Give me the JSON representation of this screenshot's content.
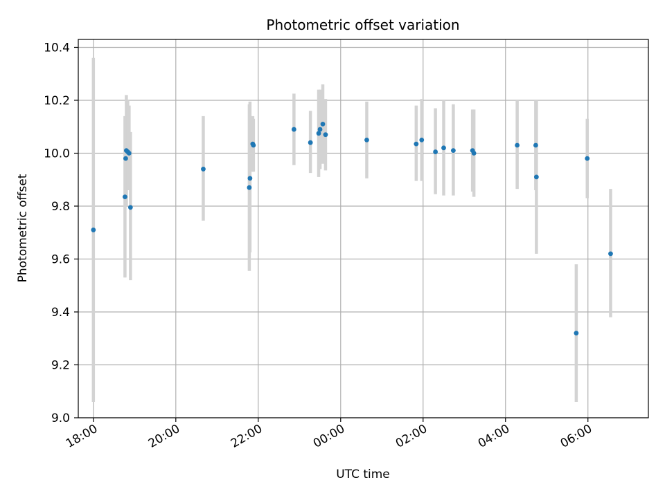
{
  "chart_data": {
    "type": "scatter",
    "title": "Photometric offset variation",
    "xlabel": "UTC time",
    "ylabel": "Photometric offset",
    "x_unit": "hours UTC (values past 24 are the next day)",
    "xlim": [
      "17:38",
      "07:28"
    ],
    "ylim": [
      9.0,
      10.43
    ],
    "x_ticks": [
      "18:00",
      "20:00",
      "22:00",
      "00:00",
      "02:00",
      "04:00",
      "06:00"
    ],
    "y_ticks": [
      "9.0",
      "9.2",
      "9.4",
      "9.6",
      "9.8",
      "10.0",
      "10.2",
      "10.4"
    ],
    "grid": true,
    "colors": {
      "points": "#1f77b4",
      "error_bars": "#d3d3d3",
      "grid": "#b0b0b0"
    },
    "points": [
      {
        "t": "18:00",
        "y": 9.71,
        "lo": 9.06,
        "hi": 10.36
      },
      {
        "t": "18:46",
        "y": 9.835,
        "lo": 9.53,
        "hi": 10.14
      },
      {
        "t": "18:47",
        "y": 9.98,
        "lo": 9.83,
        "hi": 10.13
      },
      {
        "t": "18:48",
        "y": 10.01,
        "lo": 9.8,
        "hi": 10.22
      },
      {
        "t": "18:50",
        "y": 10.005,
        "lo": 9.86,
        "hi": 10.2
      },
      {
        "t": "18:52",
        "y": 10.0,
        "lo": 9.86,
        "hi": 10.18
      },
      {
        "t": "18:54",
        "y": 9.795,
        "lo": 9.52,
        "hi": 10.08
      },
      {
        "t": "20:40",
        "y": 9.94,
        "lo": 9.745,
        "hi": 10.14
      },
      {
        "t": "21:47",
        "y": 9.87,
        "lo": 9.555,
        "hi": 10.185
      },
      {
        "t": "21:48",
        "y": 9.905,
        "lo": 9.625,
        "hi": 10.195
      },
      {
        "t": "21:52",
        "y": 10.035,
        "lo": 9.93,
        "hi": 10.14
      },
      {
        "t": "21:53",
        "y": 10.03,
        "lo": 9.93,
        "hi": 10.13
      },
      {
        "t": "22:52",
        "y": 10.09,
        "lo": 9.955,
        "hi": 10.225
      },
      {
        "t": "23:16",
        "y": 10.04,
        "lo": 9.925,
        "hi": 10.16
      },
      {
        "t": "23:28",
        "y": 10.075,
        "lo": 9.91,
        "hi": 10.24
      },
      {
        "t": "23:30",
        "y": 10.09,
        "lo": 9.94,
        "hi": 10.24
      },
      {
        "t": "23:34",
        "y": 10.11,
        "lo": 9.96,
        "hi": 10.26
      },
      {
        "t": "23:38",
        "y": 10.07,
        "lo": 9.935,
        "hi": 10.205
      },
      {
        "t": "00:38",
        "y": 10.05,
        "lo": 9.905,
        "hi": 10.195
      },
      {
        "t": "01:50",
        "y": 10.035,
        "lo": 9.895,
        "hi": 10.18
      },
      {
        "t": "01:58",
        "y": 10.05,
        "lo": 9.895,
        "hi": 10.205
      },
      {
        "t": "02:18",
        "y": 10.005,
        "lo": 9.845,
        "hi": 10.17
      },
      {
        "t": "02:30",
        "y": 10.02,
        "lo": 9.84,
        "hi": 10.2
      },
      {
        "t": "02:44",
        "y": 10.01,
        "lo": 9.84,
        "hi": 10.185
      },
      {
        "t": "03:12",
        "y": 10.01,
        "lo": 9.855,
        "hi": 10.165
      },
      {
        "t": "03:14",
        "y": 10.0,
        "lo": 9.835,
        "hi": 10.165
      },
      {
        "t": "04:17",
        "y": 10.03,
        "lo": 9.865,
        "hi": 10.2
      },
      {
        "t": "04:44",
        "y": 10.03,
        "lo": 9.86,
        "hi": 10.2
      },
      {
        "t": "04:45",
        "y": 9.91,
        "lo": 9.62,
        "hi": 10.2
      },
      {
        "t": "05:43",
        "y": 9.32,
        "lo": 9.06,
        "hi": 9.58
      },
      {
        "t": "05:59",
        "y": 9.98,
        "lo": 9.83,
        "hi": 10.13
      },
      {
        "t": "06:33",
        "y": 9.62,
        "lo": 9.38,
        "hi": 9.865
      }
    ]
  }
}
